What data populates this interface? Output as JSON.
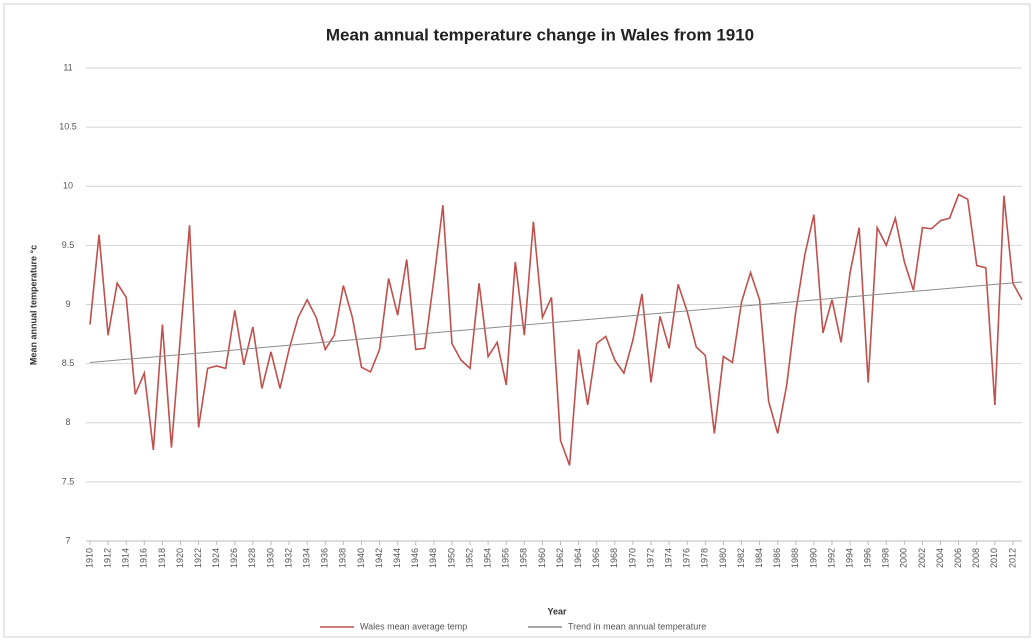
{
  "chart_data": {
    "type": "line",
    "title": "Mean annual temperature change in Wales from 1910",
    "x_label": "Year",
    "y_label": "Mean annual temperature °c",
    "x": [
      1910,
      1911,
      1912,
      1913,
      1914,
      1915,
      1916,
      1917,
      1918,
      1919,
      1920,
      1921,
      1922,
      1923,
      1924,
      1925,
      1926,
      1927,
      1928,
      1929,
      1930,
      1931,
      1932,
      1933,
      1934,
      1935,
      1936,
      1937,
      1938,
      1939,
      1940,
      1941,
      1942,
      1943,
      1944,
      1945,
      1946,
      1947,
      1948,
      1949,
      1950,
      1951,
      1952,
      1953,
      1954,
      1955,
      1956,
      1957,
      1958,
      1959,
      1960,
      1961,
      1962,
      1963,
      1964,
      1965,
      1966,
      1967,
      1968,
      1969,
      1970,
      1971,
      1972,
      1973,
      1974,
      1975,
      1976,
      1977,
      1978,
      1979,
      1980,
      1981,
      1982,
      1983,
      1984,
      1985,
      1986,
      1987,
      1988,
      1989,
      1990,
      1991,
      1992,
      1993,
      1994,
      1995,
      1996,
      1997,
      1998,
      1999,
      2000,
      2001,
      2002,
      2003,
      2004,
      2005,
      2006,
      2007,
      2008,
      2009,
      2010,
      2011,
      2012,
      2013
    ],
    "series": [
      {
        "name": "Wales mean average temp",
        "color": "#c0504d",
        "values": [
          8.83,
          9.59,
          8.74,
          9.18,
          9.06,
          8.24,
          8.42,
          7.77,
          8.83,
          7.79,
          8.74,
          9.67,
          7.96,
          8.46,
          8.48,
          8.46,
          8.95,
          8.49,
          8.81,
          8.29,
          8.6,
          8.29,
          8.62,
          8.89,
          9.04,
          8.89,
          8.62,
          8.74,
          9.16,
          8.89,
          8.47,
          8.43,
          8.62,
          9.22,
          8.91,
          9.38,
          8.62,
          8.63,
          9.21,
          9.84,
          8.67,
          8.53,
          8.46,
          9.18,
          8.56,
          8.68,
          8.32,
          9.36,
          8.74,
          9.7,
          8.89,
          9.06,
          7.85,
          7.64,
          8.62,
          8.15,
          8.67,
          8.73,
          8.53,
          8.42,
          8.7,
          9.09,
          8.34,
          8.9,
          8.63,
          9.17,
          8.94,
          8.64,
          8.57,
          7.91,
          8.56,
          8.51,
          9.02,
          9.27,
          9.04,
          8.18,
          7.91,
          8.32,
          8.94,
          9.42,
          9.76,
          8.76,
          9.04,
          8.68,
          9.27,
          9.65,
          8.34,
          9.65,
          9.5,
          9.73,
          9.36,
          9.12,
          9.65,
          9.64,
          9.71,
          9.73,
          9.93,
          9.89,
          9.33,
          9.31,
          8.15,
          9.92,
          9.18,
          9.04
        ]
      },
      {
        "name": "Trend in mean annual temperature",
        "color": "#8c8c8c",
        "x": [
          1910,
          2013
        ],
        "values": [
          8.51,
          9.19
        ]
      }
    ],
    "xlim": [
      1910,
      2013
    ],
    "xticks": [
      1910,
      1912,
      1914,
      1916,
      1918,
      1920,
      1922,
      1924,
      1926,
      1928,
      1930,
      1932,
      1934,
      1936,
      1938,
      1940,
      1942,
      1944,
      1946,
      1948,
      1950,
      1952,
      1954,
      1956,
      1958,
      1960,
      1962,
      1964,
      1966,
      1968,
      1970,
      1972,
      1974,
      1976,
      1978,
      1980,
      1982,
      1984,
      1986,
      1988,
      1990,
      1992,
      1994,
      1996,
      1998,
      2000,
      2002,
      2004,
      2006,
      2008,
      2010,
      2012
    ],
    "ylim": [
      7,
      11
    ],
    "yticks": [
      7,
      7.5,
      8,
      8.5,
      9,
      9.5,
      10,
      10.5,
      11
    ],
    "grid": true,
    "legend": "bottom"
  }
}
